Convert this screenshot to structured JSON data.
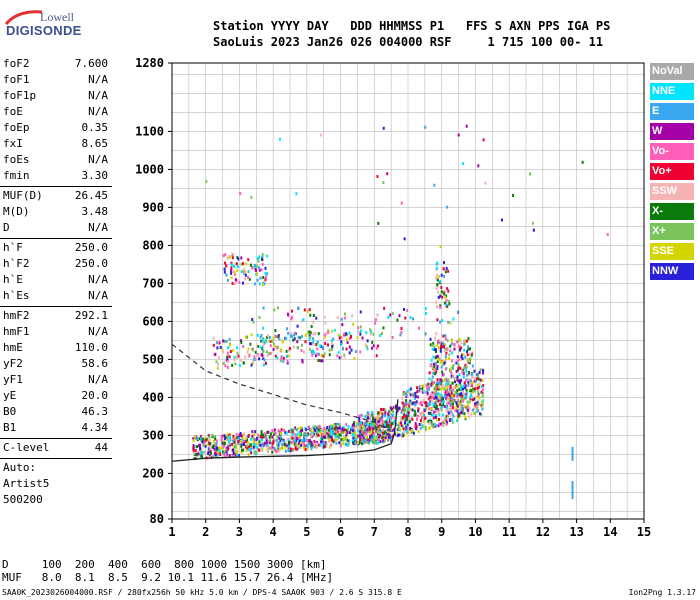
{
  "logo": {
    "line1": "Lowell",
    "line2": "DIGISONDE"
  },
  "header": {
    "line1": "Station YYYY DAY   DDD HHMMSS P1   FFS S AXN PPS IGA PS",
    "line2": "SaoLuis 2023 Jan26 026 004000 RSF     1 715 100 00- 11"
  },
  "params_group1": [
    {
      "k": "foF2",
      "v": "7.600"
    },
    {
      "k": "foF1",
      "v": "N/A"
    },
    {
      "k": "foF1p",
      "v": "N/A"
    },
    {
      "k": "foE",
      "v": "N/A"
    },
    {
      "k": "foEp",
      "v": "0.35"
    },
    {
      "k": "fxI",
      "v": "8.65"
    },
    {
      "k": "foEs",
      "v": "N/A"
    },
    {
      "k": "fmin",
      "v": "3.30"
    }
  ],
  "params_group2": [
    {
      "k": "MUF(D)",
      "v": "26.45"
    },
    {
      "k": "M(D)",
      "v": "3.48"
    },
    {
      "k": "D",
      "v": "N/A"
    }
  ],
  "params_group3": [
    {
      "k": "h`F",
      "v": "250.0"
    },
    {
      "k": "h`F2",
      "v": "250.0"
    },
    {
      "k": "h`E",
      "v": "N/A"
    },
    {
      "k": "h`Es",
      "v": "N/A"
    }
  ],
  "params_group4": [
    {
      "k": "hmF2",
      "v": "292.1"
    },
    {
      "k": "hmF1",
      "v": "N/A"
    },
    {
      "k": "hmE",
      "v": "110.0"
    },
    {
      "k": "yF2",
      "v": "58.6"
    },
    {
      "k": "yF1",
      "v": "N/A"
    },
    {
      "k": "yE",
      "v": "20.0"
    },
    {
      "k": "B0",
      "v": "46.3"
    },
    {
      "k": "B1",
      "v": "4.34"
    }
  ],
  "params_group5": [
    {
      "k": "C-level",
      "v": "44"
    }
  ],
  "auto": {
    "line1": "Auto:",
    "line2": "Artist5",
    "line3": "500200"
  },
  "legend": [
    {
      "label": "NoVal",
      "color": "#a9a9a9"
    },
    {
      "label": "NNE",
      "color": "#00e5ff"
    },
    {
      "label": "E",
      "color": "#3aa8f0"
    },
    {
      "label": "W",
      "color": "#a400a8"
    },
    {
      "label": "Vo-",
      "color": "#ff5fb8"
    },
    {
      "label": "Vo+",
      "color": "#ee0033"
    },
    {
      "label": "SSW",
      "color": "#f5b3b3"
    },
    {
      "label": "X-",
      "color": "#0a7a0a"
    },
    {
      "label": "X+",
      "color": "#7ac35a"
    },
    {
      "label": "SSE",
      "color": "#d4d400"
    },
    {
      "label": "NNW",
      "color": "#2a20d8"
    }
  ],
  "bottom": {
    "dist_line": "D     100  200  400  600  800 1000 1500 3000 [km]",
    "muf_line": "MUF   8.0  8.1  8.5  9.2 10.1 11.6 15.7 26.4 [MHz]"
  },
  "footer": "SAA0K_2023026004000.RSF / 280fx256h 50 kHz 5.0 km / DPS-4 SAA0K 903 / 2.6 S 315.8 E",
  "version": "Ion2Png 1.3.17",
  "chart_data": {
    "type": "scatter",
    "xlabel": "",
    "ylabel": "",
    "xlim": [
      1,
      15
    ],
    "ylim": [
      80,
      1280
    ],
    "x_ticks": [
      1,
      2,
      3,
      4,
      5,
      6,
      7,
      8,
      9,
      10,
      11,
      12,
      13,
      14,
      15
    ],
    "y_ticks": [
      80,
      200,
      300,
      400,
      500,
      600,
      700,
      800,
      900,
      1000,
      1100,
      1280
    ],
    "trace_profile": [
      [
        1,
        232
      ],
      [
        2,
        240
      ],
      [
        3,
        243
      ],
      [
        4,
        245
      ],
      [
        5,
        247
      ],
      [
        6,
        252
      ],
      [
        7,
        262
      ],
      [
        7.5,
        278
      ],
      [
        7.6,
        305
      ],
      [
        7.7,
        395
      ]
    ],
    "dashed_profile": [
      [
        1,
        540
      ],
      [
        2,
        470
      ],
      [
        3,
        435
      ],
      [
        4,
        408
      ],
      [
        5,
        380
      ],
      [
        6,
        360
      ],
      [
        7,
        335
      ],
      [
        7.5,
        310
      ]
    ]
  }
}
